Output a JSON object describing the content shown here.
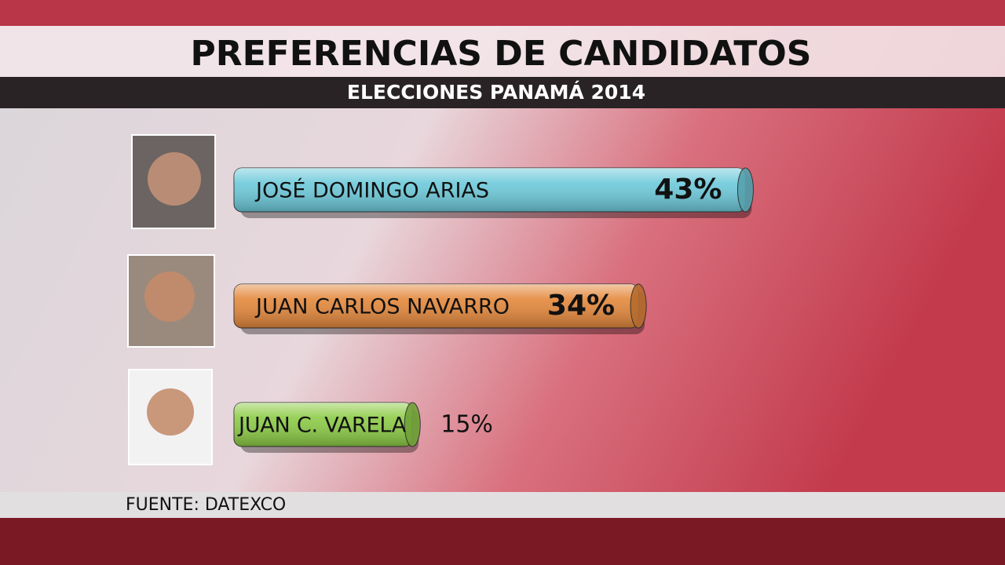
{
  "chart_data": {
    "type": "bar",
    "orientation": "horizontal",
    "title": "PREFERENCIAS DE CANDIDATOS",
    "subtitle": "ELECCIONES PANAMÁ 2014",
    "source": "FUENTE:  DATEXCO",
    "categories": [
      "JOSÉ DOMINGO ARIAS",
      "JUAN CARLOS NAVARRO",
      "JUAN C. VARELA"
    ],
    "values": [
      43,
      34,
      15
    ],
    "value_labels": [
      "43%",
      "34%",
      "15%"
    ],
    "colors": [
      "#6cc9da",
      "#e3873a",
      "#8ccb45"
    ]
  }
}
